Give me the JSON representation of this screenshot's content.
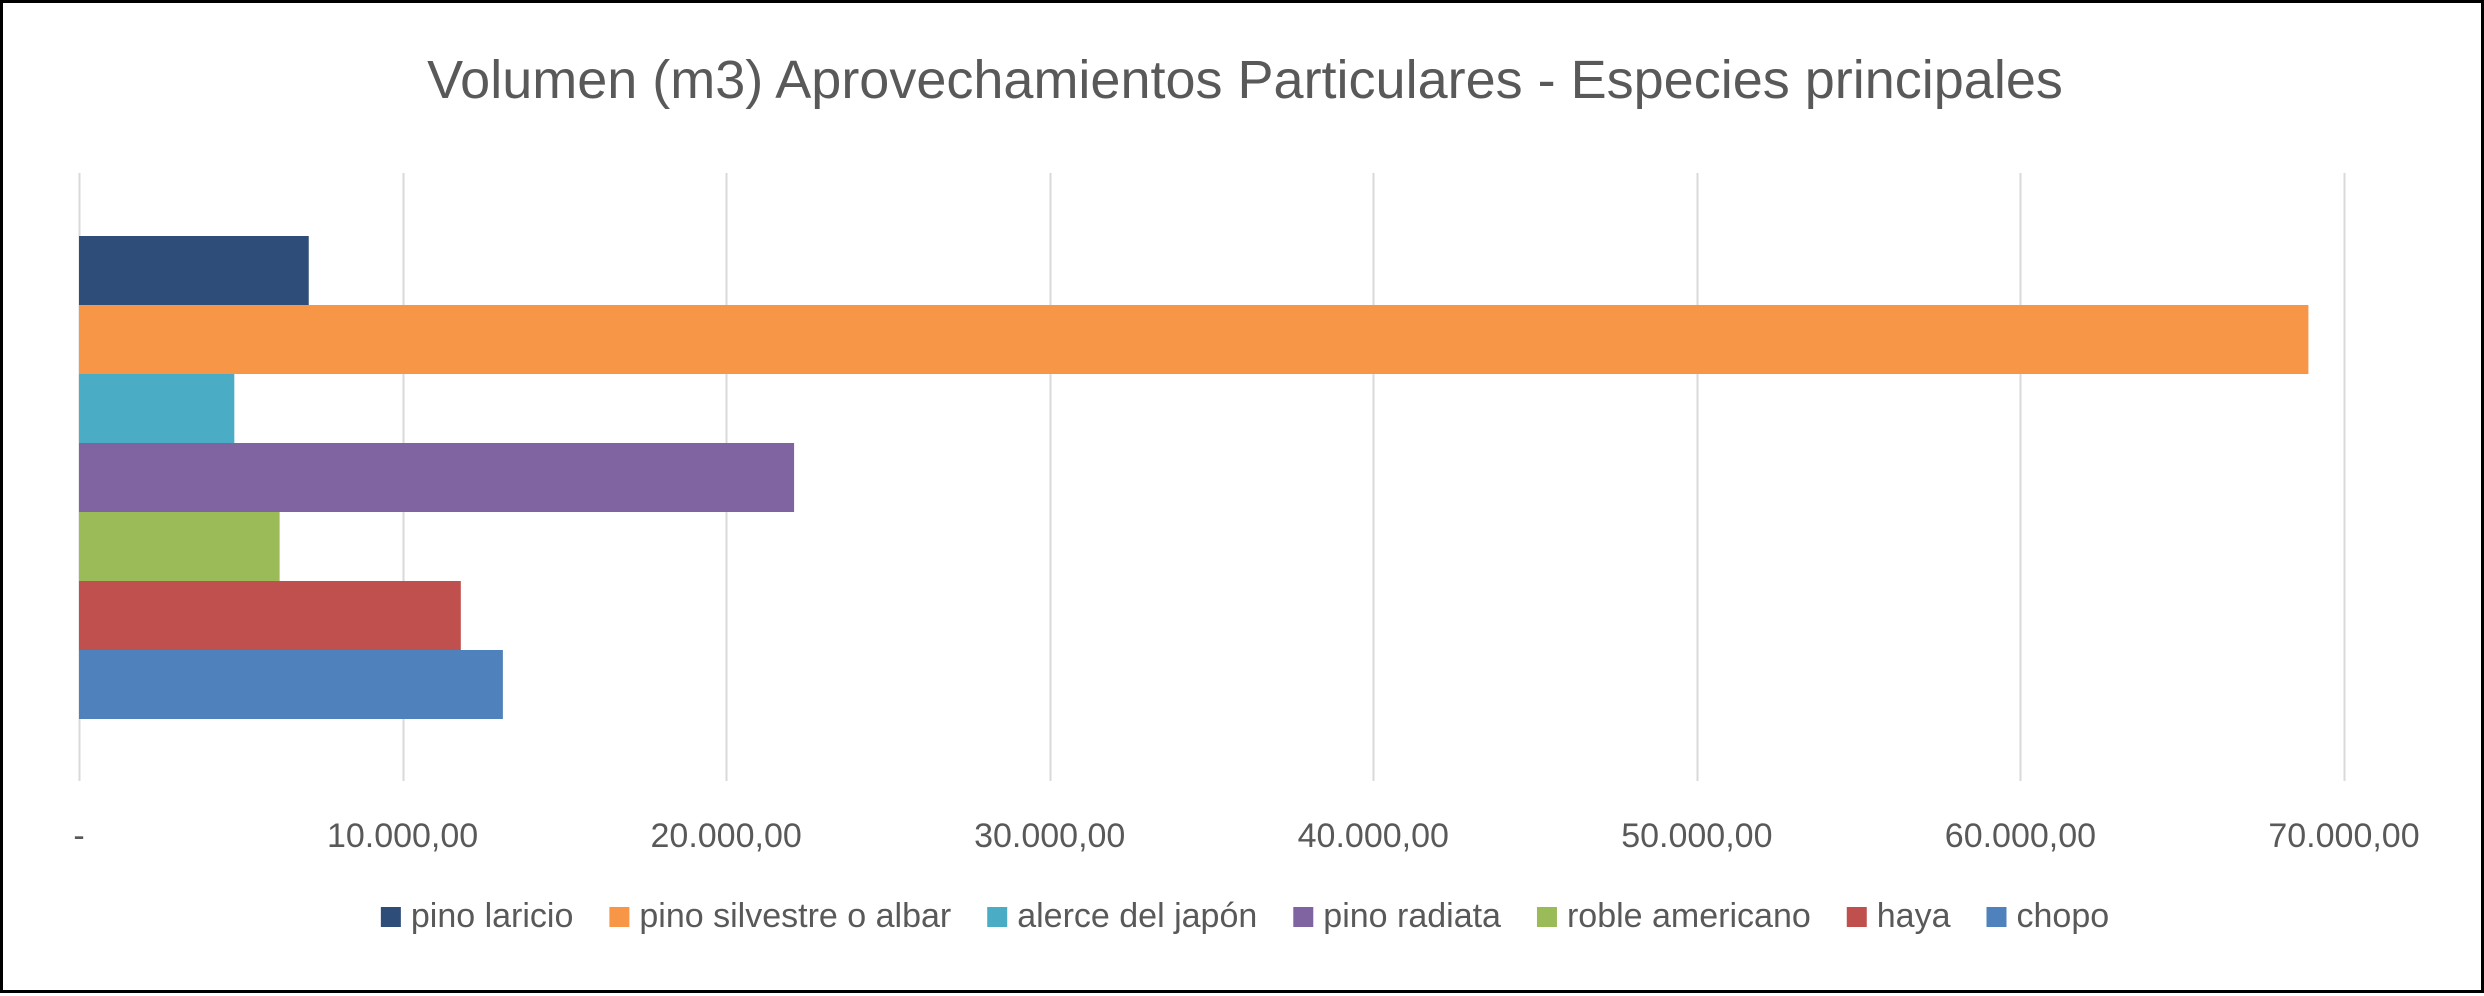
{
  "chart_data": {
    "type": "bar",
    "orientation": "horizontal",
    "title": "Volumen (m3) Aprovechamientos Particulares - Especies principales",
    "xlabel": "",
    "ylabel": "",
    "xlim": [
      0,
      70000
    ],
    "x_ticks": [
      0,
      10000,
      20000,
      30000,
      40000,
      50000,
      60000,
      70000
    ],
    "x_tick_labels": [
      "-",
      "10.000,00",
      "20.000,00",
      "30.000,00",
      "40.000,00",
      "50.000,00",
      "60.000,00",
      "70.000,00"
    ],
    "grid": "vertical",
    "legend_position": "bottom",
    "series": [
      {
        "name": "pino laricio",
        "value": 7100,
        "color": "#2E4D78"
      },
      {
        "name": "pino silvestre o albar",
        "value": 68900,
        "color": "#F79646"
      },
      {
        "name": "alerce del japón",
        "value": 4800,
        "color": "#4BACC6"
      },
      {
        "name": "pino radiata",
        "value": 22100,
        "color": "#8064A2"
      },
      {
        "name": "roble americano",
        "value": 6200,
        "color": "#9BBB59"
      },
      {
        "name": "haya",
        "value": 11800,
        "color": "#C0504D"
      },
      {
        "name": "chopo",
        "value": 13100,
        "color": "#4F81BD"
      }
    ]
  }
}
